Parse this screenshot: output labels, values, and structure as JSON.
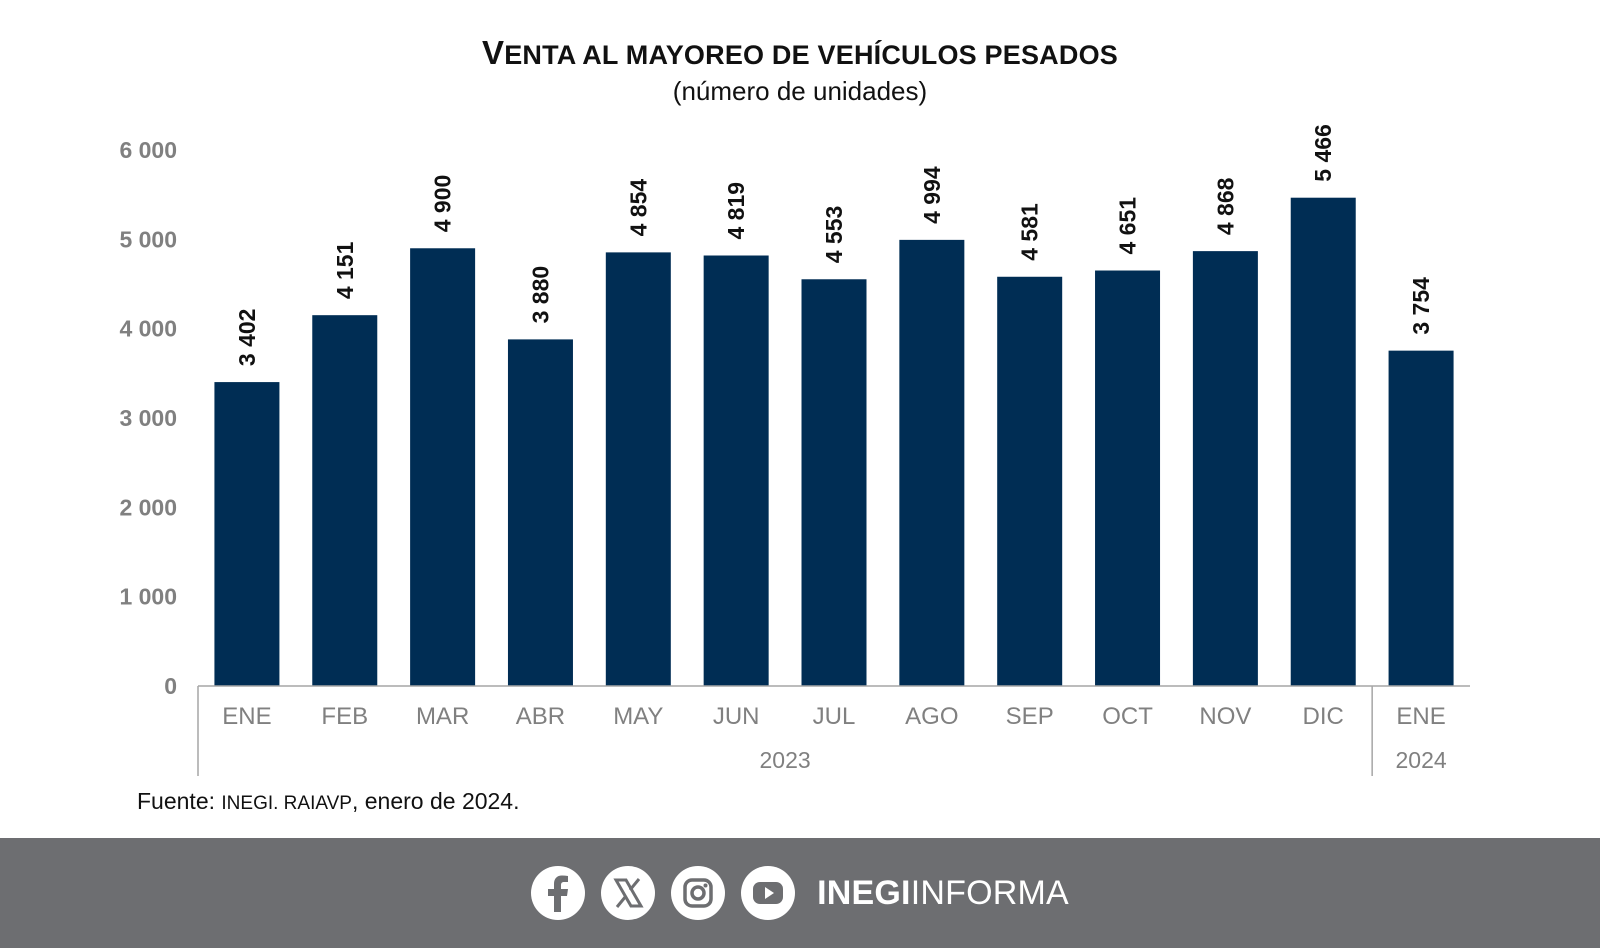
{
  "header": {
    "title_lead": "V",
    "title_rest": "ENTA AL MAYOREO DE VEHÍCULOS PESADOS",
    "subtitle": "(número de unidades)"
  },
  "chart_data": {
    "type": "bar",
    "categories": [
      "ENE",
      "FEB",
      "MAR",
      "ABR",
      "MAY",
      "JUN",
      "JUL",
      "AGO",
      "SEP",
      "OCT",
      "NOV",
      "DIC",
      "ENE"
    ],
    "values": [
      3402,
      4151,
      4900,
      3880,
      4854,
      4819,
      4553,
      4994,
      4581,
      4651,
      4868,
      5466,
      3754
    ],
    "value_labels": [
      "3 402",
      "4 151",
      "4 900",
      "3 880",
      "4 854",
      "4 819",
      "4 553",
      "4 994",
      "4 581",
      "4 651",
      "4 868",
      "5 466",
      "3 754"
    ],
    "year_groups": [
      {
        "label": "2023",
        "from": 0,
        "to": 11
      },
      {
        "label": "2024",
        "from": 12,
        "to": 12
      }
    ],
    "y_ticks": [
      0,
      1000,
      2000,
      3000,
      4000,
      5000,
      6000
    ],
    "y_tick_labels": [
      "0",
      "1 000",
      "2 000",
      "3 000",
      "4 000",
      "5 000",
      "6 000"
    ],
    "ylim": [
      0,
      6000
    ],
    "grid": false,
    "bar_color": "#002d54"
  },
  "source": {
    "prefix": "Fuente: ",
    "org": "INEGI. RAIAVP",
    "suffix": ", enero de 2024."
  },
  "footer": {
    "icons": [
      "facebook-icon",
      "x-icon",
      "instagram-icon",
      "youtube-icon"
    ],
    "brand_bold": "INEGI",
    "brand_regular": "INFORMA",
    "background": "#6d6e71"
  }
}
